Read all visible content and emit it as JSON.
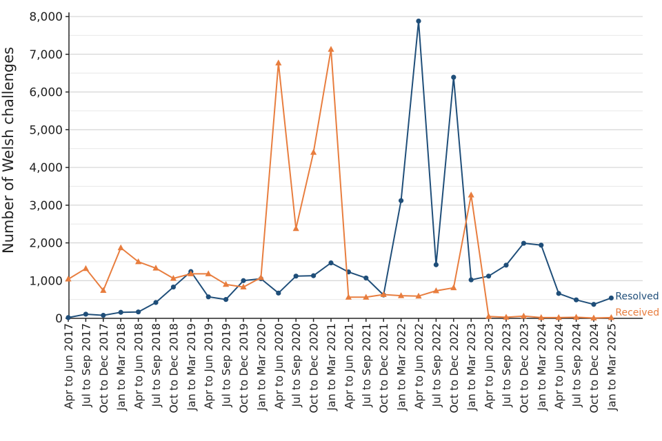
{
  "chart_data": {
    "type": "line",
    "ylabel": "Number of Welsh challenges",
    "xlabel": "",
    "ylim": [
      0,
      8000
    ],
    "yticks": [
      0,
      1000,
      2000,
      3000,
      4000,
      5000,
      6000,
      7000,
      8000
    ],
    "ytick_labels": [
      "0",
      "1,000",
      "2,000",
      "3,000",
      "4,000",
      "5,000",
      "6,000",
      "7,000",
      "8,000"
    ],
    "grid": true,
    "legend": "end-of-line labels",
    "categories": [
      "Apr to Jun 2017",
      "Jul to Sep 2017",
      "Oct to Dec 2017",
      "Jan to Mar 2018",
      "Apr to Jun 2018",
      "Jul to Sep 2018",
      "Oct to Dec 2018",
      "Jan to Mar 2019",
      "Apr to Jun 2019",
      "Jul to Sep 2019",
      "Oct to Dec 2019",
      "Jan to Mar 2020",
      "Apr to Jun 2020",
      "Jul to Sep 2020",
      "Oct to Dec 2020",
      "Jan to Mar 2021",
      "Apr to Jun 2021",
      "Jul to Sep 2021",
      "Oct to Dec 2021",
      "Jan to Mar 2022",
      "Apr to Jun 2022",
      "Jul to Sep 2022",
      "Oct to Dec 2022",
      "Jan to Mar 2023",
      "Apr to Jun 2023",
      "Jul to Sep 2023",
      "Oct to Dec 2023",
      "Jan to Mar 2024",
      "Apr to Jun 2024",
      "Jul to Sep 2024",
      "Oct to Dec 2024",
      "Jan to Mar 2025"
    ],
    "series": [
      {
        "name": "Resolved",
        "color": "#1f4e79",
        "marker": "circle",
        "values": [
          20,
          110,
          80,
          160,
          170,
          420,
          830,
          1240,
          570,
          500,
          1000,
          1050,
          670,
          1120,
          1130,
          1470,
          1230,
          1070,
          620,
          3120,
          7880,
          1420,
          6390,
          1020,
          1120,
          1410,
          1990,
          1940,
          660,
          490,
          370,
          540
        ]
      },
      {
        "name": "Received",
        "color": "#e87d3e",
        "marker": "triangle",
        "values": [
          1040,
          1320,
          740,
          1870,
          1500,
          1330,
          1060,
          1180,
          1180,
          900,
          830,
          1080,
          6770,
          2380,
          4400,
          7130,
          560,
          560,
          630,
          600,
          590,
          730,
          810,
          3270,
          50,
          30,
          60,
          20,
          20,
          30,
          10,
          20
        ]
      }
    ]
  }
}
